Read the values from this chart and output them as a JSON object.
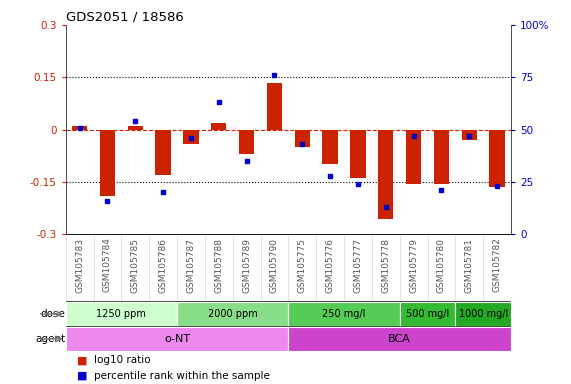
{
  "title": "GDS2051 / 18586",
  "samples": [
    "GSM105783",
    "GSM105784",
    "GSM105785",
    "GSM105786",
    "GSM105787",
    "GSM105788",
    "GSM105789",
    "GSM105790",
    "GSM105775",
    "GSM105776",
    "GSM105777",
    "GSM105778",
    "GSM105779",
    "GSM105780",
    "GSM105781",
    "GSM105782"
  ],
  "log10_ratio": [
    0.01,
    -0.19,
    0.01,
    -0.13,
    -0.04,
    0.02,
    -0.07,
    0.135,
    -0.05,
    -0.1,
    -0.14,
    -0.255,
    -0.155,
    -0.155,
    -0.03,
    -0.165
  ],
  "percentile_rank": [
    51,
    16,
    54,
    20,
    46,
    63,
    35,
    76,
    43,
    28,
    24,
    13,
    47,
    21,
    47,
    23
  ],
  "ylim_left": [
    -0.3,
    0.3
  ],
  "ylim_right": [
    0,
    100
  ],
  "yticks_left": [
    -0.3,
    -0.15,
    0,
    0.15,
    0.3
  ],
  "yticks_right": [
    0,
    25,
    50,
    75,
    100
  ],
  "ytick_labels_left": [
    "-0.3",
    "-0.15",
    "0",
    "0.15",
    "0.3"
  ],
  "ytick_labels_right": [
    "0",
    "25",
    "50",
    "75",
    "100%"
  ],
  "hlines": [
    0.15,
    0,
    -0.15
  ],
  "bar_color": "#cc2200",
  "dot_color": "#0000cc",
  "dose_groups": [
    {
      "label": "1250 ppm",
      "start": 0,
      "end": 4,
      "color": "#ccffcc"
    },
    {
      "label": "2000 ppm",
      "start": 4,
      "end": 8,
      "color": "#88dd88"
    },
    {
      "label": "250 mg/l",
      "start": 8,
      "end": 12,
      "color": "#55cc55"
    },
    {
      "label": "500 mg/l",
      "start": 12,
      "end": 14,
      "color": "#33bb33"
    },
    {
      "label": "1000 mg/l",
      "start": 14,
      "end": 16,
      "color": "#22aa22"
    }
  ],
  "agent_groups": [
    {
      "label": "o-NT",
      "start": 0,
      "end": 8,
      "color": "#ee88ee"
    },
    {
      "label": "BCA",
      "start": 8,
      "end": 16,
      "color": "#cc44cc"
    }
  ],
  "legend_items": [
    {
      "label": "log10 ratio",
      "color": "#cc2200"
    },
    {
      "label": "percentile rank within the sample",
      "color": "#0000cc"
    }
  ],
  "dose_label": "dose",
  "agent_label": "agent",
  "bg_color": "#ffffff",
  "zero_line_color": "#cc2200",
  "ylabel_left_color": "#cc2200",
  "ylabel_right_color": "#0000cc",
  "xlabel_color": "#555555"
}
